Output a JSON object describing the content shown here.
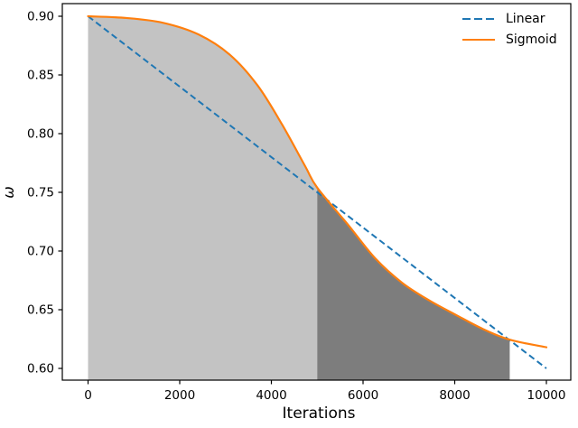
{
  "figure": {
    "background": "#ffffff",
    "spine_color": "#000000",
    "text_color": "#000000"
  },
  "chart_data": {
    "type": "line",
    "title": "",
    "xlabel": "Iterations",
    "ylabel": "ω",
    "xlim": [
      -562,
      10532
    ],
    "ylim": [
      0.59,
      0.911
    ],
    "grid": false,
    "x_ticks": {
      "values": [
        0,
        2000,
        4000,
        6000,
        8000,
        10000
      ],
      "labels": [
        "0",
        "2000",
        "4000",
        "6000",
        "8000",
        "10000"
      ]
    },
    "y_ticks": {
      "values": [
        0.9,
        0.85,
        0.8,
        0.75,
        0.7,
        0.65,
        0.6
      ],
      "labels": [
        "0.90",
        "0.85",
        "0.80",
        "0.75",
        "0.70",
        "0.65",
        "0.60"
      ]
    },
    "series": [
      {
        "name": "Linear",
        "color": "#1f77b4",
        "style": "dashed",
        "width": 2,
        "points": [
          [
            0,
            0.9
          ],
          [
            10000,
            0.6
          ]
        ]
      },
      {
        "name": "Sigmoid",
        "color": "#ff7f0e",
        "style": "solid",
        "width": 2.2,
        "points": [
          [
            0,
            0.9
          ],
          [
            840,
            0.8985
          ],
          [
            1630,
            0.8945
          ],
          [
            2410,
            0.8845
          ],
          [
            3100,
            0.867
          ],
          [
            3700,
            0.841
          ],
          [
            4230,
            0.808
          ],
          [
            4740,
            0.772
          ],
          [
            5000,
            0.754
          ],
          [
            5670,
            0.7225
          ],
          [
            6260,
            0.694
          ],
          [
            6850,
            0.673
          ],
          [
            7440,
            0.658
          ],
          [
            8030,
            0.6455
          ],
          [
            8620,
            0.6335
          ],
          [
            9200,
            0.6245
          ],
          [
            10000,
            0.618
          ]
        ]
      }
    ],
    "fills": [
      {
        "name": "light-shaded-region",
        "color": "#c3c3c3",
        "series": "Sigmoid",
        "x_range": [
          0,
          5000
        ]
      },
      {
        "name": "dark-shaded-region",
        "color": "#7d7d7d",
        "series": "Sigmoid",
        "x_range": [
          5000,
          9200
        ]
      }
    ],
    "legend": {
      "position": "upper right",
      "frame": false,
      "entries": [
        "Linear",
        "Sigmoid"
      ]
    }
  }
}
